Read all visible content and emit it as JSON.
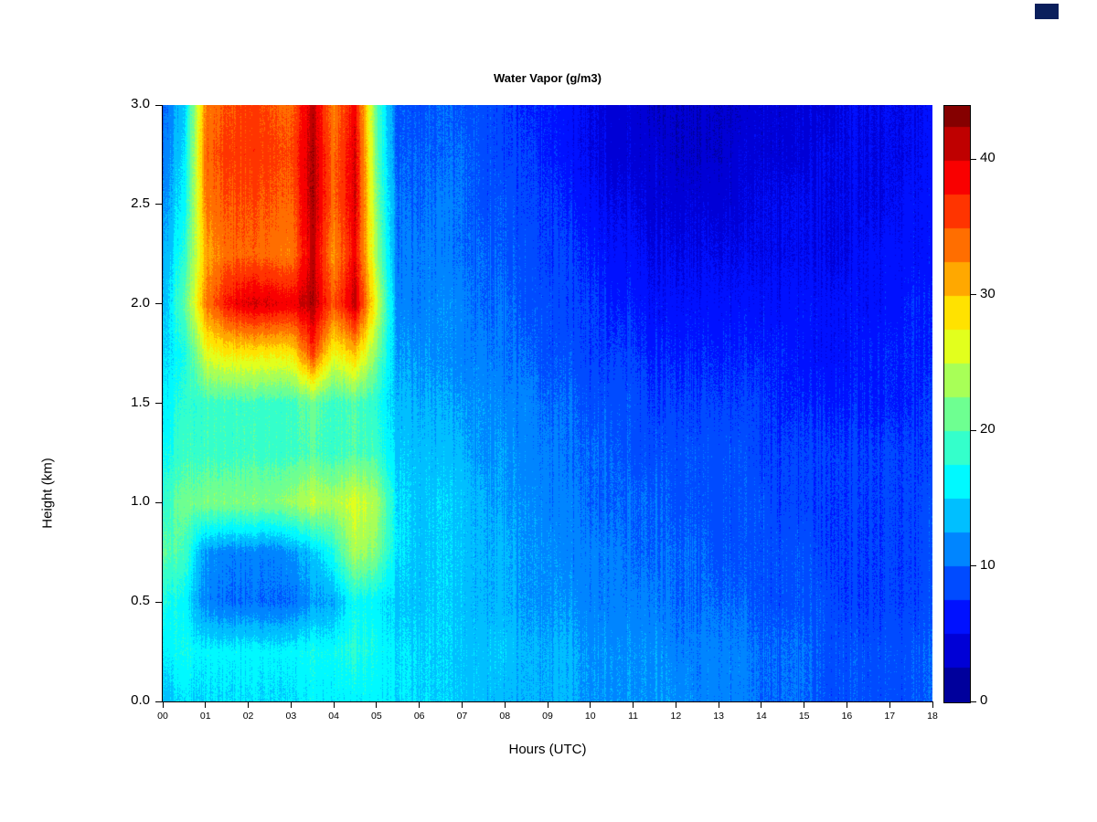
{
  "chart_data": {
    "type": "heatmap",
    "title": "Water Vapor (g/m3)",
    "xlabel": "Hours (UTC)",
    "ylabel": "Height (km)",
    "value_unit": "g/m3",
    "colormap": "jet",
    "vmin": 0,
    "vmax": 44,
    "contour_band_step": 2.5,
    "x_range": [
      0,
      18
    ],
    "y_range": [
      0,
      3
    ],
    "x_ticks": {
      "values": [
        0,
        1,
        2,
        3,
        4,
        5,
        6,
        7,
        8,
        9,
        10,
        11,
        12,
        13,
        14,
        15,
        16,
        17,
        18
      ],
      "labels": [
        "00",
        "01",
        "02",
        "03",
        "04",
        "05",
        "06",
        "07",
        "08",
        "09",
        "10",
        "11",
        "12",
        "13",
        "14",
        "15",
        "16",
        "17",
        "18"
      ]
    },
    "y_ticks": {
      "values": [
        0,
        0.5,
        1,
        1.5,
        2,
        2.5,
        3
      ],
      "labels": [
        "0.0",
        "0.5",
        "1.0",
        "1.5",
        "2.0",
        "2.5",
        "3.0"
      ]
    },
    "colorbar_ticks": {
      "values": [
        0,
        10,
        20,
        30,
        40
      ],
      "labels": [
        "0",
        "10",
        "20",
        "30",
        "40"
      ]
    },
    "x_hours": [
      0,
      0.5,
      1,
      1.5,
      2,
      2.5,
      3,
      3.5,
      4,
      4.5,
      5,
      5.5,
      6,
      6.5,
      7,
      7.5,
      8,
      8.5,
      9,
      9.5,
      10,
      10.5,
      11,
      11.5,
      12,
      12.5,
      13,
      13.5,
      14,
      14.5,
      15,
      15.5,
      16,
      16.5,
      17,
      17.5,
      18
    ],
    "y_km": [
      0,
      0.25,
      0.5,
      0.75,
      1,
      1.25,
      1.5,
      1.75,
      2,
      2.25,
      2.5,
      2.75,
      3
    ],
    "values": [
      [
        14,
        15,
        15,
        15,
        15,
        15,
        15,
        16,
        16,
        16,
        16,
        15,
        15,
        15,
        14,
        14,
        13,
        13,
        13,
        13,
        12,
        12,
        12,
        12,
        12,
        11,
        11,
        11,
        10,
        10,
        10,
        9,
        9,
        9,
        9,
        9,
        10
      ],
      [
        16,
        17,
        16,
        16,
        16,
        16,
        16,
        17,
        17,
        18,
        17,
        15,
        15,
        15,
        14,
        14,
        14,
        13,
        13,
        13,
        12,
        12,
        12,
        12,
        11,
        11,
        11,
        11,
        10,
        10,
        10,
        9,
        9,
        9,
        9,
        9,
        10
      ],
      [
        18,
        16,
        11,
        10,
        10,
        10,
        10,
        12,
        13,
        17,
        16,
        14,
        14,
        15,
        14,
        13,
        13,
        12,
        12,
        12,
        11,
        11,
        11,
        11,
        10,
        10,
        10,
        10,
        9,
        9,
        9,
        9,
        8,
        8,
        8,
        8,
        9
      ],
      [
        21,
        19,
        12,
        11,
        11,
        11,
        12,
        14,
        18,
        24,
        22,
        15,
        14,
        15,
        14,
        13,
        13,
        12,
        12,
        11,
        11,
        11,
        10,
        10,
        10,
        10,
        9,
        9,
        9,
        9,
        9,
        8,
        8,
        8,
        8,
        8,
        9
      ],
      [
        19,
        21,
        22,
        22,
        22,
        22,
        23,
        25,
        24,
        26,
        24,
        15,
        14,
        15,
        14,
        13,
        12,
        12,
        11,
        11,
        10,
        10,
        10,
        10,
        9,
        9,
        9,
        9,
        9,
        8,
        8,
        8,
        8,
        8,
        8,
        8,
        9
      ],
      [
        17,
        19,
        19,
        19,
        19,
        19,
        19,
        20,
        19,
        20,
        19,
        14,
        14,
        14,
        13,
        12,
        12,
        11,
        11,
        10,
        10,
        10,
        9,
        9,
        9,
        9,
        9,
        9,
        8,
        8,
        8,
        8,
        8,
        8,
        8,
        8,
        8
      ],
      [
        16,
        18,
        19,
        19,
        19,
        19,
        19,
        21,
        19,
        20,
        18,
        13,
        13,
        13,
        12,
        12,
        11,
        11,
        10,
        10,
        9,
        9,
        9,
        8,
        8,
        8,
        8,
        8,
        8,
        7,
        7,
        7,
        7,
        7,
        7,
        7,
        8
      ],
      [
        15,
        17,
        26,
        28,
        28,
        28,
        28,
        36,
        27,
        30,
        22,
        12,
        12,
        12,
        11,
        11,
        10,
        10,
        9,
        9,
        8,
        8,
        8,
        7,
        7,
        7,
        7,
        7,
        7,
        7,
        6,
        6,
        6,
        7,
        7,
        7,
        7
      ],
      [
        14,
        20,
        33,
        38,
        40,
        40,
        39,
        42,
        35,
        41,
        26,
        11,
        11,
        12,
        11,
        10,
        10,
        9,
        9,
        8,
        8,
        7,
        7,
        6,
        6,
        6,
        6,
        6,
        6,
        6,
        6,
        6,
        6,
        6,
        6,
        7,
        7
      ],
      [
        13,
        18,
        31,
        34,
        34,
        34,
        33,
        41,
        32,
        39,
        23,
        10,
        11,
        11,
        10,
        10,
        9,
        9,
        8,
        8,
        7,
        6,
        6,
        5,
        5,
        5,
        5,
        5,
        5,
        5,
        5,
        5,
        5,
        6,
        6,
        6,
        6
      ],
      [
        12,
        16,
        33,
        35,
        35,
        35,
        34,
        42,
        34,
        40,
        22,
        10,
        10,
        11,
        10,
        9,
        9,
        8,
        8,
        7,
        6,
        5,
        5,
        4,
        4,
        4,
        4,
        4,
        5,
        5,
        5,
        5,
        5,
        5,
        5,
        6,
        6
      ],
      [
        11,
        15,
        34,
        36,
        36,
        36,
        35,
        42,
        34,
        40,
        21,
        9,
        10,
        10,
        10,
        9,
        8,
        8,
        7,
        6,
        5,
        4,
        4,
        4,
        3,
        3,
        3,
        4,
        4,
        4,
        4,
        5,
        5,
        5,
        5,
        5,
        6
      ],
      [
        10,
        14,
        33,
        35,
        36,
        35,
        34,
        41,
        33,
        39,
        20,
        9,
        9,
        10,
        9,
        9,
        8,
        7,
        7,
        6,
        5,
        4,
        4,
        3,
        3,
        3,
        3,
        3,
        4,
        4,
        4,
        4,
        5,
        5,
        5,
        5,
        6
      ]
    ]
  }
}
